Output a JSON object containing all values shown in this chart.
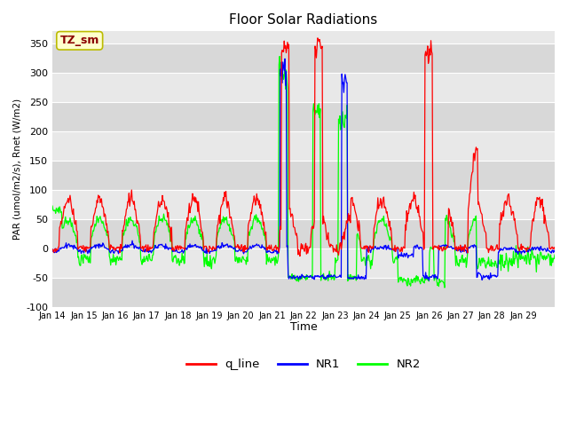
{
  "title": "Floor Solar Radiations",
  "xlabel": "Time",
  "ylabel": "PAR (umol/m2/s), Rnet (W/m2)",
  "ylim": [
    -100,
    370
  ],
  "yticks": [
    -100,
    -50,
    0,
    50,
    100,
    150,
    200,
    250,
    300,
    350
  ],
  "xtick_labels": [
    "Jan 14",
    "Jan 15",
    "Jan 16",
    "Jan 17",
    "Jan 18",
    "Jan 19",
    "Jan 20",
    "Jan 21",
    "Jan 22",
    "Jan 23",
    "Jan 24",
    "Jan 25",
    "Jan 26",
    "Jan 27",
    "Jan 28",
    "Jan 29"
  ],
  "bg_color": "#e8e8e8",
  "stripe_color": "#d0d0d0",
  "grid_color": "white",
  "line_colors": {
    "q_line": "red",
    "NR1": "blue",
    "NR2": "lime"
  },
  "annotation_text": "TZ_sm",
  "annotation_color": "darkred",
  "annotation_bg": "#ffffcc",
  "annotation_border": "#bbbb00"
}
